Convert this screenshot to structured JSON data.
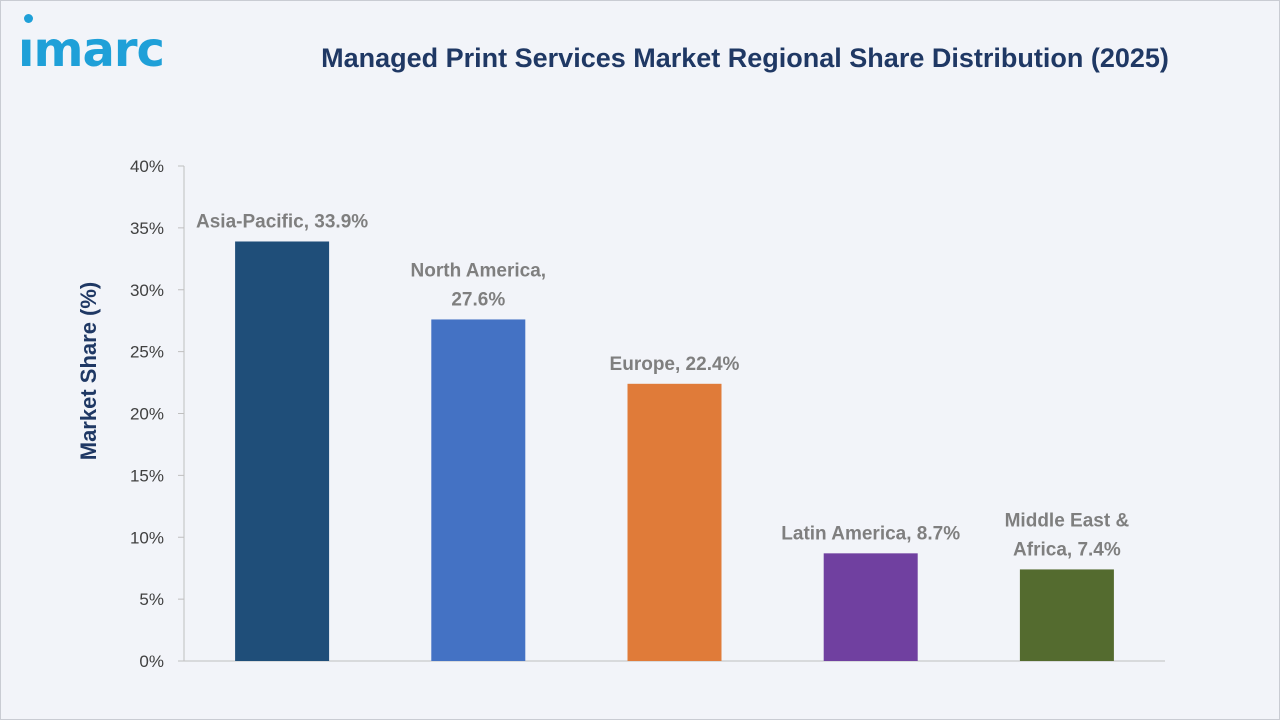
{
  "brand": {
    "logo_text": "ımarc",
    "color": "#1fa0d8"
  },
  "chart_data": {
    "type": "bar",
    "title": "Managed Print Services Market Regional Share Distribution (2025)",
    "xlabel": "",
    "ylabel": "Market Share (%)",
    "categories": [
      "Asia-Pacific",
      "North America",
      "Europe",
      "Latin America",
      "Middle East & Africa"
    ],
    "values": [
      33.9,
      27.6,
      22.4,
      8.7,
      7.4
    ],
    "data_labels": [
      [
        "Asia-Pacific, 33.9%"
      ],
      [
        "North America,",
        "27.6%"
      ],
      [
        "Europe, 22.4%"
      ],
      [
        "Latin America, 8.7%"
      ],
      [
        "Middle East &",
        "Africa, 7.4%"
      ]
    ],
    "colors": [
      "#1f4e79",
      "#4472c4",
      "#e07b39",
      "#7040a0",
      "#546b2f"
    ],
    "ylim": [
      0,
      40
    ],
    "yticks": [
      0,
      5,
      10,
      15,
      20,
      25,
      30,
      35,
      40
    ],
    "ytick_labels": [
      "0%",
      "5%",
      "10%",
      "15%",
      "20%",
      "25%",
      "30%",
      "35%",
      "40%"
    ],
    "grid": false,
    "legend": "none"
  }
}
